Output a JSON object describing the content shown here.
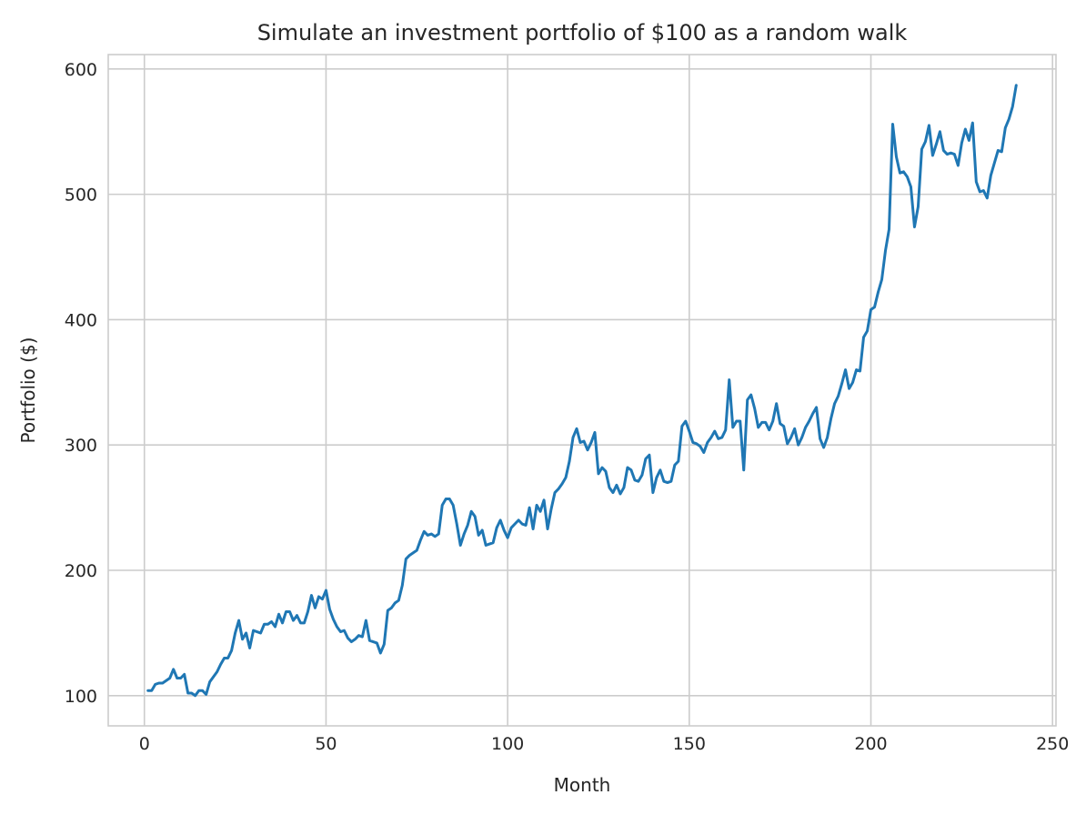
{
  "chart_data": {
    "type": "line",
    "title": "Simulate an investment portfolio of $100 as a random walk",
    "xlabel": "Month",
    "ylabel": "Portfolio ($)",
    "xlim": [
      -9.95,
      250.95
    ],
    "ylim": [
      75.9,
      611.5
    ],
    "xticks": [
      0,
      50,
      100,
      150,
      200,
      250
    ],
    "yticks": [
      100,
      200,
      300,
      400,
      500,
      600
    ],
    "xtick_labels": [
      "0",
      "50",
      "100",
      "150",
      "200",
      "250"
    ],
    "ytick_labels": [
      "100",
      "200",
      "300",
      "400",
      "500",
      "600"
    ],
    "grid": true,
    "legend": false,
    "series": [
      {
        "name": "Portfolio",
        "color": "#1f77b4",
        "x": [
          1,
          2,
          3,
          4,
          5,
          6,
          7,
          8,
          9,
          10,
          11,
          12,
          13,
          14,
          15,
          16,
          17,
          18,
          19,
          20,
          21,
          22,
          23,
          24,
          25,
          26,
          27,
          28,
          29,
          30,
          31,
          32,
          33,
          34,
          35,
          36,
          37,
          38,
          39,
          40,
          41,
          42,
          43,
          44,
          45,
          46,
          47,
          48,
          49,
          50,
          51,
          52,
          53,
          54,
          55,
          56,
          57,
          58,
          59,
          60,
          61,
          62,
          63,
          64,
          65,
          66,
          67,
          68,
          69,
          70,
          71,
          72,
          73,
          74,
          75,
          76,
          77,
          78,
          79,
          80,
          81,
          82,
          83,
          84,
          85,
          86,
          87,
          88,
          89,
          90,
          91,
          92,
          93,
          94,
          95,
          96,
          97,
          98,
          99,
          100,
          101,
          102,
          103,
          104,
          105,
          106,
          107,
          108,
          109,
          110,
          111,
          112,
          113,
          114,
          115,
          116,
          117,
          118,
          119,
          120,
          121,
          122,
          123,
          124,
          125,
          126,
          127,
          128,
          129,
          130,
          131,
          132,
          133,
          134,
          135,
          136,
          137,
          138,
          139,
          140,
          141,
          142,
          143,
          144,
          145,
          146,
          147,
          148,
          149,
          150,
          151,
          152,
          153,
          154,
          155,
          156,
          157,
          158,
          159,
          160,
          161,
          162,
          163,
          164,
          165,
          166,
          167,
          168,
          169,
          170,
          171,
          172,
          173,
          174,
          175,
          176,
          177,
          178,
          179,
          180,
          181,
          182,
          183,
          184,
          185,
          186,
          187,
          188,
          189,
          190,
          191,
          192,
          193,
          194,
          195,
          196,
          197,
          198,
          199,
          200,
          201,
          202,
          203,
          204,
          205,
          206,
          207,
          208,
          209,
          210,
          211,
          212,
          213,
          214,
          215,
          216,
          217,
          218,
          219,
          220,
          221,
          222,
          223,
          224,
          225,
          226,
          227,
          228,
          229,
          230,
          231,
          232,
          233,
          234,
          235,
          236,
          237,
          238,
          239,
          240
        ],
        "y": [
          104,
          104,
          109,
          110,
          110,
          112,
          114,
          121,
          114,
          114,
          117,
          102,
          102,
          100,
          104,
          104,
          101,
          111,
          115,
          119,
          125,
          130,
          130,
          136,
          150,
          160,
          145,
          150,
          138,
          152,
          151,
          150,
          157,
          157,
          159,
          155,
          165,
          158,
          167,
          167,
          160,
          164,
          158,
          158,
          167,
          180,
          170,
          179,
          177,
          184,
          169,
          161,
          155,
          151,
          152,
          146,
          143,
          145,
          148,
          147,
          160,
          144,
          143,
          142,
          134,
          141,
          168,
          170,
          174,
          176,
          188,
          209,
          212,
          214,
          216,
          224,
          231,
          228,
          229,
          227,
          229,
          252,
          257,
          257,
          252,
          237,
          220,
          229,
          236,
          247,
          243,
          228,
          232,
          220,
          221,
          222,
          234,
          240,
          232,
          226,
          234,
          237,
          240,
          237,
          236,
          250,
          233,
          252,
          247,
          256,
          233,
          249,
          262,
          265,
          269,
          274,
          287,
          306,
          313,
          302,
          303,
          296,
          302,
          310,
          277,
          282,
          279,
          266,
          262,
          268,
          261,
          266,
          282,
          280,
          272,
          271,
          276,
          289,
          292,
          262,
          274,
          280,
          271,
          270,
          271,
          284,
          287,
          315,
          319,
          311,
          302,
          301,
          299,
          294,
          302,
          306,
          311,
          305,
          306,
          312,
          352,
          314,
          319,
          319,
          280,
          336,
          340,
          329,
          314,
          318,
          318,
          312,
          319,
          333,
          317,
          315,
          301,
          306,
          313,
          300,
          306,
          314,
          319,
          325,
          330,
          305,
          298,
          306,
          321,
          333,
          339,
          349,
          360,
          345,
          350,
          360,
          359,
          386,
          391,
          408,
          410,
          422,
          432,
          455,
          472,
          556,
          530,
          517,
          518,
          514,
          506,
          474,
          490,
          536,
          542,
          555,
          531,
          540,
          550,
          535,
          532,
          533,
          532,
          523,
          541,
          552,
          543,
          557,
          510,
          502,
          503,
          497,
          515,
          525,
          535,
          534,
          553,
          560,
          570,
          587
        ]
      }
    ]
  }
}
